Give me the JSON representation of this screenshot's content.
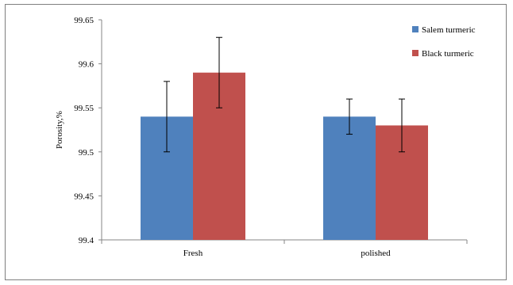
{
  "chart_data": {
    "type": "bar",
    "title": "",
    "xlabel": "",
    "ylabel": "Porosity,%",
    "categories": [
      "Fresh",
      "polished"
    ],
    "series": [
      {
        "name": "Salem turmeric",
        "values": [
          99.54,
          99.54
        ],
        "errors": [
          0.04,
          0.02
        ],
        "color": "#4f81bd"
      },
      {
        "name": "Black turmeric",
        "values": [
          99.59,
          99.53
        ],
        "errors": [
          0.04,
          0.03
        ],
        "color": "#c0504d"
      }
    ],
    "ylim": [
      99.4,
      99.65
    ],
    "yticks": [
      "99.4",
      "99.45",
      "99.5",
      "99.55",
      "99.6",
      "99.65"
    ],
    "grid": false,
    "legend_position": "top-right"
  }
}
